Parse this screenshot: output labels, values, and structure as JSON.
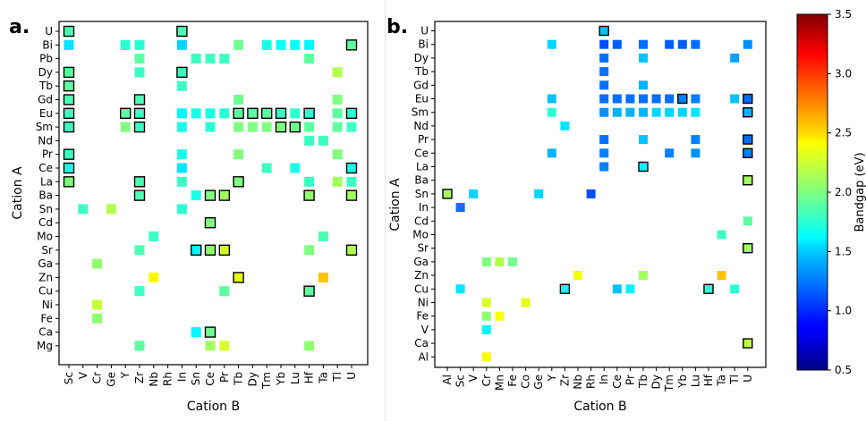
{
  "chart_data": [
    {
      "type": "heatmap",
      "panel_label": "a.",
      "xlabel": "Cation B",
      "ylabel": "Cation A",
      "x_categories": [
        "Sc",
        "V",
        "Cr",
        "Ge",
        "Y",
        "Zr",
        "Nb",
        "Rh",
        "In",
        "Sn",
        "Ce",
        "Pr",
        "Tb",
        "Dy",
        "Tm",
        "Yb",
        "Lu",
        "Hf",
        "Ta",
        "Tl",
        "U"
      ],
      "y_categories": [
        "U",
        "Bi",
        "Pb",
        "Dy",
        "Tb",
        "Gd",
        "Eu",
        "Sm",
        "Nd",
        "Pr",
        "Ce",
        "La",
        "Ba",
        "Sn",
        "Cd",
        "Mo",
        "Sr",
        "Ga",
        "Zn",
        "Cu",
        "Ni",
        "Fe",
        "Ca",
        "Mg"
      ],
      "points": [
        {
          "a": "U",
          "b": "Sc",
          "bandgap": 1.85,
          "outlined": true
        },
        {
          "a": "U",
          "b": "In",
          "bandgap": 1.85,
          "outlined": true
        },
        {
          "a": "Bi",
          "b": "Sc",
          "bandgap": 1.55
        },
        {
          "a": "Bi",
          "b": "Y",
          "bandgap": 1.75
        },
        {
          "a": "Bi",
          "b": "Zr",
          "bandgap": 1.75
        },
        {
          "a": "Bi",
          "b": "In",
          "bandgap": 1.5
        },
        {
          "a": "Bi",
          "b": "Tb",
          "bandgap": 1.95
        },
        {
          "a": "Bi",
          "b": "Tm",
          "bandgap": 1.7
        },
        {
          "a": "Bi",
          "b": "Yb",
          "bandgap": 1.65
        },
        {
          "a": "Bi",
          "b": "Lu",
          "bandgap": 1.65
        },
        {
          "a": "Bi",
          "b": "Hf",
          "bandgap": 1.6
        },
        {
          "a": "Bi",
          "b": "U",
          "bandgap": 1.9,
          "outlined": true
        },
        {
          "a": "Pb",
          "b": "Zr",
          "bandgap": 1.9
        },
        {
          "a": "Pb",
          "b": "Sn",
          "bandgap": 1.8
        },
        {
          "a": "Pb",
          "b": "Ce",
          "bandgap": 1.8
        },
        {
          "a": "Pb",
          "b": "Pr",
          "bandgap": 1.8
        },
        {
          "a": "Pb",
          "b": "Hf",
          "bandgap": 1.9
        },
        {
          "a": "Dy",
          "b": "Sc",
          "bandgap": 1.9,
          "outlined": true
        },
        {
          "a": "Dy",
          "b": "Zr",
          "bandgap": 1.8
        },
        {
          "a": "Dy",
          "b": "In",
          "bandgap": 1.8,
          "outlined": true
        },
        {
          "a": "Dy",
          "b": "Tl",
          "bandgap": 2.15
        },
        {
          "a": "Tb",
          "b": "Sc",
          "bandgap": 1.9,
          "outlined": true
        },
        {
          "a": "Tb",
          "b": "In",
          "bandgap": 1.8
        },
        {
          "a": "Gd",
          "b": "Sc",
          "bandgap": 1.85,
          "outlined": true
        },
        {
          "a": "Gd",
          "b": "Zr",
          "bandgap": 1.85,
          "outlined": true
        },
        {
          "a": "Gd",
          "b": "Tb",
          "bandgap": 1.95
        },
        {
          "a": "Gd",
          "b": "Tl",
          "bandgap": 2.0
        },
        {
          "a": "Eu",
          "b": "Sc",
          "bandgap": 1.8,
          "outlined": true
        },
        {
          "a": "Eu",
          "b": "Y",
          "bandgap": 1.9,
          "outlined": true
        },
        {
          "a": "Eu",
          "b": "Zr",
          "bandgap": 1.8,
          "outlined": true
        },
        {
          "a": "Eu",
          "b": "In",
          "bandgap": 1.6
        },
        {
          "a": "Eu",
          "b": "Sn",
          "bandgap": 1.7
        },
        {
          "a": "Eu",
          "b": "Ce",
          "bandgap": 1.7
        },
        {
          "a": "Eu",
          "b": "Pr",
          "bandgap": 1.75
        },
        {
          "a": "Eu",
          "b": "Tb",
          "bandgap": 1.9,
          "outlined": true
        },
        {
          "a": "Eu",
          "b": "Dy",
          "bandgap": 1.9,
          "outlined": true
        },
        {
          "a": "Eu",
          "b": "Tm",
          "bandgap": 1.9,
          "outlined": true
        },
        {
          "a": "Eu",
          "b": "Yb",
          "bandgap": 1.8,
          "outlined": true
        },
        {
          "a": "Eu",
          "b": "Lu",
          "bandgap": 1.75
        },
        {
          "a": "Eu",
          "b": "Hf",
          "bandgap": 1.75,
          "outlined": true
        },
        {
          "a": "Eu",
          "b": "Tl",
          "bandgap": 1.9
        },
        {
          "a": "Eu",
          "b": "U",
          "bandgap": 1.75,
          "outlined": true
        },
        {
          "a": "Sm",
          "b": "Sc",
          "bandgap": 1.8,
          "outlined": true
        },
        {
          "a": "Sm",
          "b": "Y",
          "bandgap": 2.0
        },
        {
          "a": "Sm",
          "b": "Zr",
          "bandgap": 1.8,
          "outlined": true
        },
        {
          "a": "Sm",
          "b": "In",
          "bandgap": 1.7
        },
        {
          "a": "Sm",
          "b": "Ce",
          "bandgap": 1.75
        },
        {
          "a": "Sm",
          "b": "Tb",
          "bandgap": 2.0
        },
        {
          "a": "Sm",
          "b": "Dy",
          "bandgap": 2.0
        },
        {
          "a": "Sm",
          "b": "Tm",
          "bandgap": 2.0
        },
        {
          "a": "Sm",
          "b": "Yb",
          "bandgap": 2.0,
          "outlined": true
        },
        {
          "a": "Sm",
          "b": "Lu",
          "bandgap": 1.95,
          "outlined": true
        },
        {
          "a": "Sm",
          "b": "Hf",
          "bandgap": 1.9
        },
        {
          "a": "Sm",
          "b": "Tl",
          "bandgap": 1.9
        },
        {
          "a": "Sm",
          "b": "U",
          "bandgap": 1.8
        },
        {
          "a": "Nd",
          "b": "Hf",
          "bandgap": 1.8
        },
        {
          "a": "Nd",
          "b": "Ta",
          "bandgap": 1.8
        },
        {
          "a": "Pr",
          "b": "Sc",
          "bandgap": 1.8,
          "outlined": true
        },
        {
          "a": "Pr",
          "b": "In",
          "bandgap": 1.7
        },
        {
          "a": "Pr",
          "b": "Tb",
          "bandgap": 2.0
        },
        {
          "a": "Pr",
          "b": "Tl",
          "bandgap": 2.0
        },
        {
          "a": "Ce",
          "b": "Sc",
          "bandgap": 1.7,
          "outlined": true
        },
        {
          "a": "Ce",
          "b": "In",
          "bandgap": 1.55
        },
        {
          "a": "Ce",
          "b": "Tm",
          "bandgap": 1.8
        },
        {
          "a": "Ce",
          "b": "Lu",
          "bandgap": 1.7
        },
        {
          "a": "Ce",
          "b": "U",
          "bandgap": 1.7,
          "outlined": true
        },
        {
          "a": "La",
          "b": "Sc",
          "bandgap": 2.0,
          "outlined": true
        },
        {
          "a": "La",
          "b": "Zr",
          "bandgap": 1.85,
          "outlined": true
        },
        {
          "a": "La",
          "b": "In",
          "bandgap": 1.8
        },
        {
          "a": "La",
          "b": "Tb",
          "bandgap": 2.0,
          "outlined": true
        },
        {
          "a": "La",
          "b": "Hf",
          "bandgap": 1.8
        },
        {
          "a": "La",
          "b": "Tl",
          "bandgap": 2.1
        },
        {
          "a": "La",
          "b": "U",
          "bandgap": 1.8
        },
        {
          "a": "Ba",
          "b": "Zr",
          "bandgap": 1.85,
          "outlined": true
        },
        {
          "a": "Ba",
          "b": "Sn",
          "bandgap": 1.7
        },
        {
          "a": "Ba",
          "b": "Ce",
          "bandgap": 2.0,
          "outlined": true
        },
        {
          "a": "Ba",
          "b": "Pr",
          "bandgap": 2.1,
          "outlined": true
        },
        {
          "a": "Ba",
          "b": "Hf",
          "bandgap": 2.05,
          "outlined": true
        },
        {
          "a": "Ba",
          "b": "U",
          "bandgap": 2.1,
          "outlined": true
        },
        {
          "a": "Sn",
          "b": "V",
          "bandgap": 1.8
        },
        {
          "a": "Sn",
          "b": "Ge",
          "bandgap": 2.15
        },
        {
          "a": "Sn",
          "b": "In",
          "bandgap": 1.75
        },
        {
          "a": "Cd",
          "b": "Ce",
          "bandgap": 2.0,
          "outlined": true
        },
        {
          "a": "Mo",
          "b": "Nb",
          "bandgap": 1.8
        },
        {
          "a": "Mo",
          "b": "Ta",
          "bandgap": 1.85
        },
        {
          "a": "Sr",
          "b": "Zr",
          "bandgap": 1.85
        },
        {
          "a": "Sr",
          "b": "Sn",
          "bandgap": 1.6,
          "outlined": true
        },
        {
          "a": "Sr",
          "b": "Ce",
          "bandgap": 2.05,
          "outlined": true
        },
        {
          "a": "Sr",
          "b": "Pr",
          "bandgap": 2.25,
          "outlined": true
        },
        {
          "a": "Sr",
          "b": "Hf",
          "bandgap": 2.0
        },
        {
          "a": "Sr",
          "b": "U",
          "bandgap": 2.15,
          "outlined": true
        },
        {
          "a": "Ga",
          "b": "Cr",
          "bandgap": 2.05
        },
        {
          "a": "Zn",
          "b": "Nb",
          "bandgap": 2.4
        },
        {
          "a": "Zn",
          "b": "Tb",
          "bandgap": 2.3,
          "outlined": true
        },
        {
          "a": "Zn",
          "b": "Ta",
          "bandgap": 2.55
        },
        {
          "a": "Cu",
          "b": "Zr",
          "bandgap": 1.8
        },
        {
          "a": "Cu",
          "b": "Pr",
          "bandgap": 1.9
        },
        {
          "a": "Cu",
          "b": "Hf",
          "bandgap": 1.9,
          "outlined": true
        },
        {
          "a": "Ni",
          "b": "Cr",
          "bandgap": 2.2
        },
        {
          "a": "Fe",
          "b": "Cr",
          "bandgap": 2.05
        },
        {
          "a": "Ca",
          "b": "Sn",
          "bandgap": 1.6
        },
        {
          "a": "Ca",
          "b": "Ce",
          "bandgap": 1.95,
          "outlined": true
        },
        {
          "a": "Mg",
          "b": "Zr",
          "bandgap": 1.9
        },
        {
          "a": "Mg",
          "b": "Ce",
          "bandgap": 2.1
        },
        {
          "a": "Mg",
          "b": "Pr",
          "bandgap": 2.25
        },
        {
          "a": "Mg",
          "b": "Hf",
          "bandgap": 2.05
        }
      ]
    },
    {
      "type": "heatmap",
      "panel_label": "b.",
      "xlabel": "Cation B",
      "ylabel": "Cation A",
      "x_categories": [
        "Al",
        "Sc",
        "V",
        "Cr",
        "Mn",
        "Fe",
        "Co",
        "Ge",
        "Y",
        "Zr",
        "Nb",
        "Rh",
        "In",
        "Ce",
        "Pr",
        "Tb",
        "Dy",
        "Tm",
        "Yb",
        "Lu",
        "Hf",
        "Ta",
        "Tl",
        "U"
      ],
      "y_categories": [
        "U",
        "Bi",
        "Dy",
        "Tb",
        "Gd",
        "Eu",
        "Sm",
        "Nd",
        "Pr",
        "Ce",
        "La",
        "Ba",
        "Sn",
        "In",
        "Cd",
        "Mo",
        "Sr",
        "Ga",
        "Zn",
        "Cu",
        "Ni",
        "Fe",
        "V",
        "Ca",
        "Al"
      ],
      "points": [
        {
          "a": "U",
          "b": "In",
          "bandgap": 1.45,
          "outlined": true
        },
        {
          "a": "Bi",
          "b": "Y",
          "bandgap": 1.5
        },
        {
          "a": "Bi",
          "b": "In",
          "bandgap": 1.1
        },
        {
          "a": "Bi",
          "b": "Ce",
          "bandgap": 1.15
        },
        {
          "a": "Bi",
          "b": "Tb",
          "bandgap": 1.2
        },
        {
          "a": "Bi",
          "b": "Tm",
          "bandgap": 1.15
        },
        {
          "a": "Bi",
          "b": "Yb",
          "bandgap": 1.15
        },
        {
          "a": "Bi",
          "b": "Lu",
          "bandgap": 1.2
        },
        {
          "a": "Bi",
          "b": "U",
          "bandgap": 1.3
        },
        {
          "a": "Dy",
          "b": "In",
          "bandgap": 1.2
        },
        {
          "a": "Dy",
          "b": "Tb",
          "bandgap": 1.45
        },
        {
          "a": "Dy",
          "b": "Tl",
          "bandgap": 1.35
        },
        {
          "a": "Tb",
          "b": "In",
          "bandgap": 1.2
        },
        {
          "a": "Gd",
          "b": "In",
          "bandgap": 1.2
        },
        {
          "a": "Gd",
          "b": "Tb",
          "bandgap": 1.4
        },
        {
          "a": "Eu",
          "b": "Y",
          "bandgap": 1.45
        },
        {
          "a": "Eu",
          "b": "In",
          "bandgap": 1.2
        },
        {
          "a": "Eu",
          "b": "Ce",
          "bandgap": 1.2
        },
        {
          "a": "Eu",
          "b": "Pr",
          "bandgap": 1.2
        },
        {
          "a": "Eu",
          "b": "Tb",
          "bandgap": 1.2
        },
        {
          "a": "Eu",
          "b": "Dy",
          "bandgap": 1.2
        },
        {
          "a": "Eu",
          "b": "Tm",
          "bandgap": 1.2
        },
        {
          "a": "Eu",
          "b": "Yb",
          "bandgap": 1.25,
          "outlined": true
        },
        {
          "a": "Eu",
          "b": "Lu",
          "bandgap": 1.25
        },
        {
          "a": "Eu",
          "b": "Tl",
          "bandgap": 1.45
        },
        {
          "a": "Eu",
          "b": "U",
          "bandgap": 1.2,
          "outlined": true
        },
        {
          "a": "Sm",
          "b": "Y",
          "bandgap": 1.75
        },
        {
          "a": "Sm",
          "b": "In",
          "bandgap": 1.3
        },
        {
          "a": "Sm",
          "b": "Ce",
          "bandgap": 1.4
        },
        {
          "a": "Sm",
          "b": "Pr",
          "bandgap": 1.4
        },
        {
          "a": "Sm",
          "b": "Tb",
          "bandgap": 1.4
        },
        {
          "a": "Sm",
          "b": "Dy",
          "bandgap": 1.5
        },
        {
          "a": "Sm",
          "b": "Tm",
          "bandgap": 1.5
        },
        {
          "a": "Sm",
          "b": "Yb",
          "bandgap": 1.5
        },
        {
          "a": "Sm",
          "b": "Lu",
          "bandgap": 1.55
        },
        {
          "a": "Sm",
          "b": "U",
          "bandgap": 1.4,
          "outlined": true
        },
        {
          "a": "Nd",
          "b": "Zr",
          "bandgap": 1.55
        },
        {
          "a": "Pr",
          "b": "In",
          "bandgap": 1.2
        },
        {
          "a": "Pr",
          "b": "Tb",
          "bandgap": 1.45
        },
        {
          "a": "Pr",
          "b": "Lu",
          "bandgap": 1.25
        },
        {
          "a": "Pr",
          "b": "U",
          "bandgap": 1.2,
          "outlined": true
        },
        {
          "a": "Ce",
          "b": "Y",
          "bandgap": 1.4
        },
        {
          "a": "Ce",
          "b": "In",
          "bandgap": 1.25
        },
        {
          "a": "Ce",
          "b": "Tm",
          "bandgap": 1.25
        },
        {
          "a": "Ce",
          "b": "Lu",
          "bandgap": 1.3
        },
        {
          "a": "Ce",
          "b": "U",
          "bandgap": 1.25,
          "outlined": true
        },
        {
          "a": "La",
          "b": "In",
          "bandgap": 1.25
        },
        {
          "a": "La",
          "b": "Tb",
          "bandgap": 1.6,
          "outlined": true
        },
        {
          "a": "Ba",
          "b": "U",
          "bandgap": 2.1,
          "outlined": true
        },
        {
          "a": "Sn",
          "b": "Al",
          "bandgap": 2.1,
          "outlined": true
        },
        {
          "a": "Sn",
          "b": "V",
          "bandgap": 1.5
        },
        {
          "a": "Sn",
          "b": "Ge",
          "bandgap": 1.5
        },
        {
          "a": "Sn",
          "b": "Rh",
          "bandgap": 1.1
        },
        {
          "a": "In",
          "b": "Sc",
          "bandgap": 1.2
        },
        {
          "a": "Cd",
          "b": "U",
          "bandgap": 1.9
        },
        {
          "a": "Mo",
          "b": "Ta",
          "bandgap": 1.8
        },
        {
          "a": "Sr",
          "b": "U",
          "bandgap": 2.1,
          "outlined": true
        },
        {
          "a": "Ga",
          "b": "Cr",
          "bandgap": 2.0
        },
        {
          "a": "Ga",
          "b": "Mn",
          "bandgap": 2.15
        },
        {
          "a": "Ga",
          "b": "Fe",
          "bandgap": 1.95
        },
        {
          "a": "Zn",
          "b": "Nb",
          "bandgap": 2.35
        },
        {
          "a": "Zn",
          "b": "Tb",
          "bandgap": 2.1
        },
        {
          "a": "Zn",
          "b": "Ta",
          "bandgap": 2.55
        },
        {
          "a": "Cu",
          "b": "Sc",
          "bandgap": 1.55
        },
        {
          "a": "Cu",
          "b": "Zr",
          "bandgap": 1.65,
          "outlined": true
        },
        {
          "a": "Cu",
          "b": "Ce",
          "bandgap": 1.45
        },
        {
          "a": "Cu",
          "b": "Pr",
          "bandgap": 1.6
        },
        {
          "a": "Cu",
          "b": "Hf",
          "bandgap": 1.75,
          "outlined": true
        },
        {
          "a": "Cu",
          "b": "Tl",
          "bandgap": 1.75
        },
        {
          "a": "Ni",
          "b": "Cr",
          "bandgap": 2.25
        },
        {
          "a": "Ni",
          "b": "Co",
          "bandgap": 2.3
        },
        {
          "a": "Fe",
          "b": "Cr",
          "bandgap": 2.05
        },
        {
          "a": "Fe",
          "b": "Mn",
          "bandgap": 2.35
        },
        {
          "a": "V",
          "b": "Cr",
          "bandgap": 1.6
        },
        {
          "a": "Ca",
          "b": "U",
          "bandgap": 2.2,
          "outlined": true
        },
        {
          "a": "Al",
          "b": "Cr",
          "bandgap": 2.35
        }
      ]
    }
  ],
  "colorbar": {
    "label": "Bandgap (eV)",
    "min": 0.5,
    "max": 3.5,
    "colormap": "jet",
    "ticks": [
      0.5,
      1.0,
      1.5,
      2.0,
      2.5,
      3.0,
      3.5
    ],
    "tick_labels": [
      "0.5",
      "1.0",
      "1.5",
      "2.0",
      "2.5",
      "3.0",
      "3.5"
    ]
  }
}
